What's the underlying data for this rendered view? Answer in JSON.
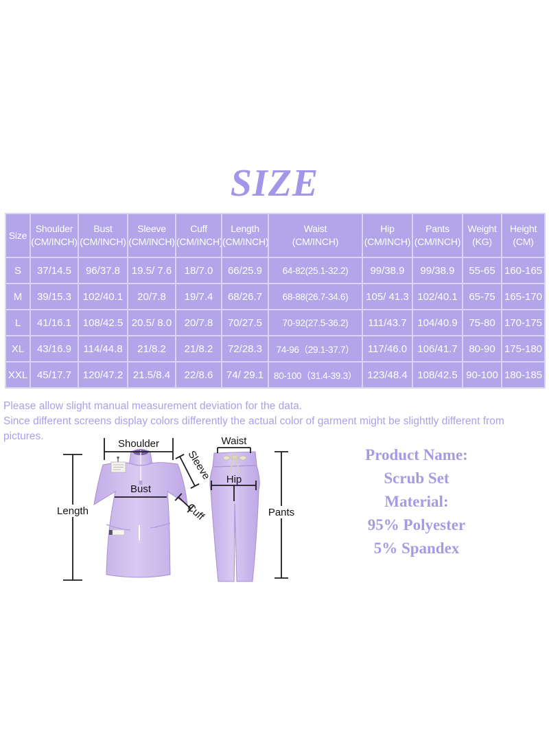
{
  "title": "SIZE",
  "table": {
    "columns": [
      {
        "label": "Size",
        "unit": ""
      },
      {
        "label": "Shoulder",
        "unit": "(CM/INCH)"
      },
      {
        "label": "Bust",
        "unit": "(CM/INCH)"
      },
      {
        "label": "Sleeve",
        "unit": "(CM/INCH)"
      },
      {
        "label": "Cuff",
        "unit": "(CM/INCH)"
      },
      {
        "label": "Length",
        "unit": "(CM/INCH)"
      },
      {
        "label": "Waist",
        "unit": "(CM/INCH)"
      },
      {
        "label": "Hip",
        "unit": "(CM/INCH)"
      },
      {
        "label": "Pants",
        "unit": "(CM/INCH)"
      },
      {
        "label": "Weight",
        "unit": "(KG)"
      },
      {
        "label": "Height",
        "unit": "(CM)"
      }
    ],
    "rows": [
      [
        "S",
        "37/14.5",
        "96/37.8",
        "19.5/ 7.6",
        "18/7.0",
        "66/25.9",
        "64-82(25.1-32.2)",
        "99/38.9",
        "99/38.9",
        "55-65",
        "160-165"
      ],
      [
        "M",
        "39/15.3",
        "102/40.1",
        "20/7.8",
        "19/7.4",
        "68/26.7",
        "68-88(26.7-34.6)",
        "105/ 41.3",
        "102/40.1",
        "65-75",
        "165-170"
      ],
      [
        "L",
        "41/16.1",
        "108/42.5",
        "20.5/ 8.0",
        "20/7.8",
        "70/27.5",
        "70-92(27.5-36.2)",
        "111/43.7",
        "104/40.9",
        "75-80",
        "170-175"
      ],
      [
        "XL",
        "43/16.9",
        "114/44.8",
        "21/8.2",
        "21/8.2",
        "72/28.3",
        "74-96（29.1-37.7）",
        "117/46.0",
        "106/41.7",
        "80-90",
        "175-180"
      ],
      [
        "XXL",
        "45/17.7",
        "120/47.2",
        "21.5/8.4",
        "22/8.6",
        "74/ 29.1",
        "80-100（31.4-39.3）",
        "123/48.4",
        "108/42.5",
        "90-100",
        "180-185"
      ]
    ]
  },
  "notes": {
    "lines": [
      "Please allow slight manual measurement deviation for the data.",
      "Since different screens display colors differently the actual color of garment might be slighttly different from",
      "pictures."
    ]
  },
  "diagram": {
    "shoulder": "Shoulder",
    "sleeve": "Sleeve",
    "bust": "Bust",
    "cuff": "Cuff",
    "length": "Length",
    "waist": "Waist",
    "hip": "Hip",
    "pants": "Pants"
  },
  "product": {
    "lines": [
      "Product Name:",
      "Scrub Set",
      "Material:",
      "95% Polyester",
      "5% Spandex"
    ]
  },
  "colors": {
    "table_fill": "#b3a5e9",
    "table_grid": "#dad3f5",
    "table_text": "#ffffff",
    "title_purple": "#a296e8",
    "notes_purple": "#a9a0ec",
    "product_purple": "#a89ae2",
    "garment_lavender": "#c9b4ea",
    "measurement_black": "#1b1b1b",
    "background": "#ffffff"
  }
}
